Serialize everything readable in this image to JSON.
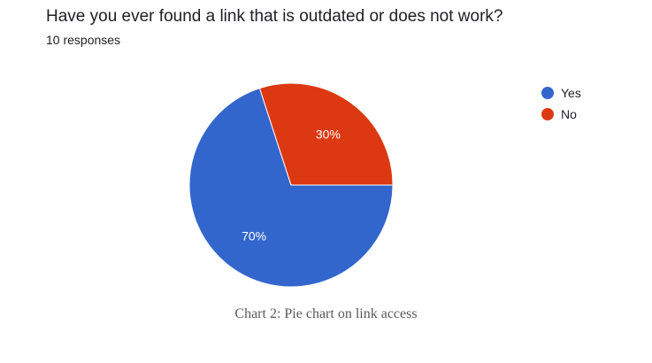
{
  "header": {
    "title": "Have you ever found a link that is outdated or does not work?",
    "responses": "10 responses"
  },
  "caption": "Chart 2: Pie chart on link access",
  "chart_data": {
    "type": "pie",
    "title": "Have you ever found a link that is outdated or does not work?",
    "subtitle": "10 responses",
    "categories": [
      "Yes",
      "No"
    ],
    "values": [
      70,
      30
    ],
    "labels": [
      "70%",
      "30%"
    ],
    "colors": [
      "#3366cc",
      "#dc3912"
    ],
    "legend": "right"
  }
}
